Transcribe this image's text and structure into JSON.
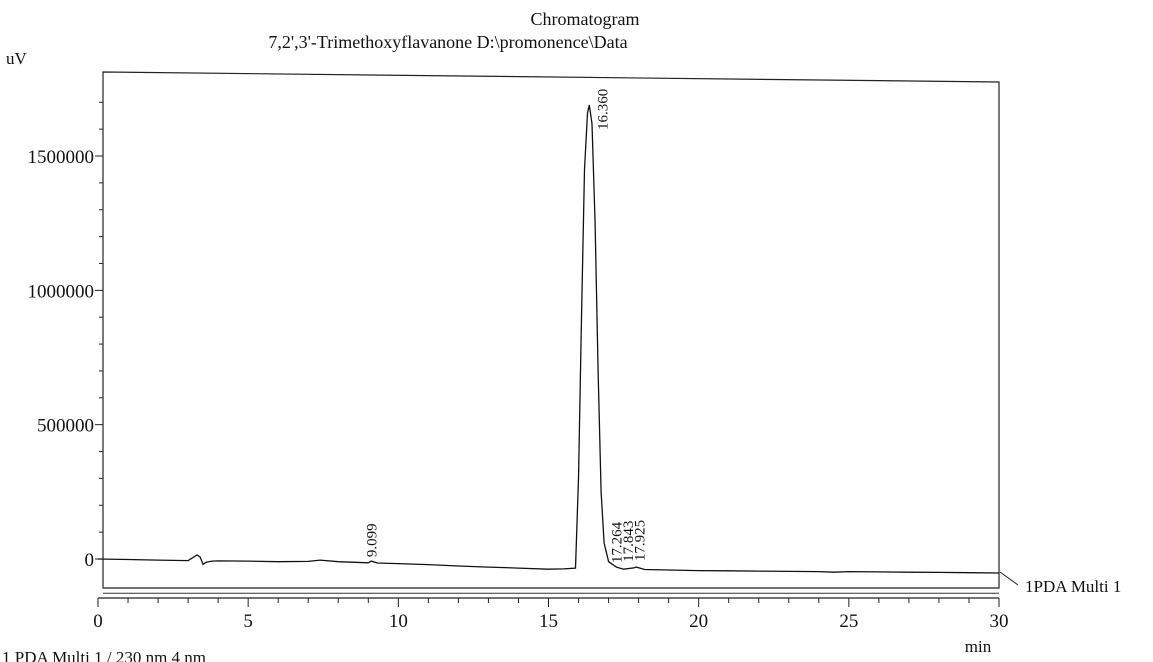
{
  "header": {
    "title": "Chromatogram",
    "subtitle": "7,2',3'-Trimethoxyflavanone D:\\promonence\\Data"
  },
  "chart_data": {
    "type": "line",
    "title": "Chromatogram",
    "subtitle": "7,2',3'-Trimethoxyflavanone D:\\promonence\\Data",
    "ylabel": "uV",
    "xlabel": "min",
    "xlim": [
      0,
      30
    ],
    "ylim": [
      -120000,
      1800000
    ],
    "x_ticks": [
      0,
      5,
      10,
      15,
      20,
      25,
      30
    ],
    "y_ticks": [
      0,
      500000,
      1000000,
      1500000
    ],
    "y_tick_labels": [
      "0",
      "500000",
      "1000000",
      "1500000"
    ],
    "grid": false,
    "series": [
      {
        "name": "1PDA Multi 1",
        "x": [
          0,
          1,
          2,
          3,
          3.3,
          3.4,
          3.5,
          3.6,
          3.8,
          4,
          5,
          6,
          7,
          7.4,
          8,
          9,
          9.099,
          9.3,
          10,
          11,
          12,
          13,
          14,
          15,
          15.5,
          15.9,
          16.0,
          16.1,
          16.2,
          16.3,
          16.36,
          16.45,
          16.55,
          16.65,
          16.75,
          16.85,
          17.0,
          17.264,
          17.5,
          17.843,
          17.925,
          18.2,
          19,
          20,
          21,
          22,
          23,
          24,
          24.5,
          25,
          26,
          27,
          28,
          29,
          30
        ],
        "y": [
          0,
          -2000,
          -4000,
          -6000,
          15000,
          8000,
          -20000,
          -12000,
          -8000,
          -7000,
          -8000,
          -10000,
          -9000,
          -4000,
          -10000,
          -14000,
          -8000,
          -15000,
          -17000,
          -21000,
          -26000,
          -30000,
          -34000,
          -38000,
          -37000,
          -34000,
          300000,
          900000,
          1450000,
          1660000,
          1690000,
          1620000,
          1250000,
          700000,
          250000,
          60000,
          -10000,
          -30000,
          -38000,
          -33000,
          -30000,
          -39000,
          -41000,
          -43000,
          -44000,
          -45000,
          -46000,
          -47000,
          -49000,
          -47000,
          -48000,
          -49000,
          -50000,
          -51000,
          -52000
        ]
      }
    ],
    "baseline_y": -120000,
    "peaks": [
      {
        "label": "9.099",
        "x": 9.099,
        "y": -8000
      },
      {
        "label": "16.360",
        "x": 16.36,
        "y": 1690000
      },
      {
        "label": "17.264",
        "x": 17.264,
        "y": -30000
      },
      {
        "label": "17.843",
        "x": 17.843,
        "y": -33000
      },
      {
        "label": "17.925",
        "x": 17.925,
        "y": -30000
      }
    ],
    "channel_label": "1PDA Multi 1",
    "footer_text": "1 PDA Multi 1 / 230 nm 4 nm"
  }
}
